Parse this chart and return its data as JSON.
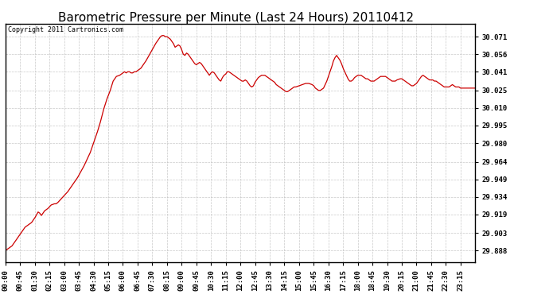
{
  "title": "Barometric Pressure per Minute (Last 24 Hours) 20110412",
  "copyright": "Copyright 2011 Cartronics.com",
  "line_color": "#cc0000",
  "background_color": "#ffffff",
  "plot_bg_color": "#ffffff",
  "grid_color": "#bbbbbb",
  "yticks": [
    29.888,
    29.903,
    29.919,
    29.934,
    29.949,
    29.964,
    29.98,
    29.995,
    30.01,
    30.025,
    30.041,
    30.056,
    30.071
  ],
  "ylim": [
    29.878,
    30.082
  ],
  "xtick_labels": [
    "00:00",
    "00:45",
    "01:30",
    "02:15",
    "03:00",
    "03:45",
    "04:30",
    "05:15",
    "06:00",
    "06:45",
    "07:30",
    "08:15",
    "09:00",
    "09:45",
    "10:30",
    "11:15",
    "12:00",
    "12:45",
    "13:30",
    "14:15",
    "15:00",
    "15:45",
    "16:30",
    "17:15",
    "18:00",
    "18:45",
    "19:30",
    "20:15",
    "21:00",
    "21:45",
    "22:30",
    "23:15"
  ],
  "title_fontsize": 11,
  "axis_fontsize": 6.5,
  "copyright_fontsize": 6,
  "keypoints": [
    [
      0,
      29.888
    ],
    [
      20,
      29.892
    ],
    [
      40,
      29.9
    ],
    [
      60,
      29.908
    ],
    [
      80,
      29.912
    ],
    [
      90,
      29.916
    ],
    [
      100,
      29.921
    ],
    [
      105,
      29.92
    ],
    [
      110,
      29.918
    ],
    [
      115,
      29.92
    ],
    [
      120,
      29.922
    ],
    [
      130,
      29.924
    ],
    [
      140,
      29.927
    ],
    [
      150,
      29.928
    ],
    [
      155,
      29.928
    ],
    [
      160,
      29.929
    ],
    [
      170,
      29.932
    ],
    [
      180,
      29.935
    ],
    [
      190,
      29.938
    ],
    [
      200,
      29.942
    ],
    [
      210,
      29.946
    ],
    [
      220,
      29.95
    ],
    [
      230,
      29.955
    ],
    [
      240,
      29.96
    ],
    [
      250,
      29.966
    ],
    [
      260,
      29.972
    ],
    [
      270,
      29.98
    ],
    [
      280,
      29.988
    ],
    [
      290,
      29.997
    ],
    [
      300,
      30.008
    ],
    [
      310,
      30.017
    ],
    [
      320,
      30.024
    ],
    [
      330,
      30.033
    ],
    [
      340,
      30.037
    ],
    [
      350,
      30.038
    ],
    [
      355,
      30.039
    ],
    [
      360,
      30.04
    ],
    [
      365,
      30.041
    ],
    [
      370,
      30.04
    ],
    [
      375,
      30.041
    ],
    [
      380,
      30.041
    ],
    [
      385,
      30.04
    ],
    [
      390,
      30.04
    ],
    [
      395,
      30.041
    ],
    [
      400,
      30.041
    ],
    [
      405,
      30.042
    ],
    [
      410,
      30.043
    ],
    [
      415,
      30.044
    ],
    [
      420,
      30.046
    ],
    [
      430,
      30.05
    ],
    [
      440,
      30.055
    ],
    [
      450,
      30.06
    ],
    [
      460,
      30.065
    ],
    [
      470,
      30.069
    ],
    [
      475,
      30.071
    ],
    [
      480,
      30.072
    ],
    [
      485,
      30.072
    ],
    [
      490,
      30.071
    ],
    [
      495,
      30.071
    ],
    [
      500,
      30.07
    ],
    [
      505,
      30.069
    ],
    [
      510,
      30.067
    ],
    [
      515,
      30.065
    ],
    [
      520,
      30.062
    ],
    [
      525,
      30.063
    ],
    [
      530,
      30.064
    ],
    [
      535,
      30.063
    ],
    [
      540,
      30.06
    ],
    [
      545,
      30.056
    ],
    [
      550,
      30.055
    ],
    [
      555,
      30.057
    ],
    [
      560,
      30.056
    ],
    [
      565,
      30.054
    ],
    [
      570,
      30.052
    ],
    [
      575,
      30.05
    ],
    [
      580,
      30.048
    ],
    [
      585,
      30.047
    ],
    [
      590,
      30.048
    ],
    [
      595,
      30.049
    ],
    [
      600,
      30.048
    ],
    [
      605,
      30.046
    ],
    [
      610,
      30.044
    ],
    [
      615,
      30.042
    ],
    [
      620,
      30.04
    ],
    [
      625,
      30.038
    ],
    [
      630,
      30.04
    ],
    [
      635,
      30.041
    ],
    [
      640,
      30.04
    ],
    [
      645,
      30.038
    ],
    [
      650,
      30.036
    ],
    [
      655,
      30.034
    ],
    [
      660,
      30.033
    ],
    [
      665,
      30.036
    ],
    [
      670,
      30.038
    ],
    [
      675,
      30.039
    ],
    [
      680,
      30.041
    ],
    [
      685,
      30.041
    ],
    [
      690,
      30.04
    ],
    [
      695,
      30.039
    ],
    [
      700,
      30.038
    ],
    [
      705,
      30.037
    ],
    [
      710,
      30.036
    ],
    [
      715,
      30.035
    ],
    [
      720,
      30.034
    ],
    [
      725,
      30.033
    ],
    [
      730,
      30.033
    ],
    [
      735,
      30.034
    ],
    [
      740,
      30.033
    ],
    [
      745,
      30.031
    ],
    [
      750,
      30.029
    ],
    [
      755,
      30.028
    ],
    [
      760,
      30.029
    ],
    [
      765,
      30.032
    ],
    [
      770,
      30.034
    ],
    [
      775,
      30.036
    ],
    [
      780,
      30.037
    ],
    [
      785,
      30.038
    ],
    [
      790,
      30.038
    ],
    [
      795,
      30.038
    ],
    [
      800,
      30.037
    ],
    [
      805,
      30.036
    ],
    [
      810,
      30.035
    ],
    [
      815,
      30.034
    ],
    [
      820,
      30.033
    ],
    [
      825,
      30.032
    ],
    [
      830,
      30.03
    ],
    [
      840,
      30.028
    ],
    [
      850,
      30.026
    ],
    [
      855,
      30.025
    ],
    [
      860,
      30.024
    ],
    [
      865,
      30.024
    ],
    [
      870,
      30.025
    ],
    [
      875,
      30.026
    ],
    [
      880,
      30.027
    ],
    [
      885,
      30.028
    ],
    [
      890,
      30.028
    ],
    [
      900,
      30.029
    ],
    [
      910,
      30.03
    ],
    [
      920,
      30.031
    ],
    [
      930,
      30.031
    ],
    [
      940,
      30.03
    ],
    [
      945,
      30.029
    ],
    [
      950,
      30.027
    ],
    [
      955,
      30.026
    ],
    [
      960,
      30.025
    ],
    [
      965,
      30.025
    ],
    [
      970,
      30.026
    ],
    [
      975,
      30.027
    ],
    [
      985,
      30.033
    ],
    [
      995,
      30.041
    ],
    [
      1000,
      30.045
    ],
    [
      1005,
      30.05
    ],
    [
      1010,
      30.053
    ],
    [
      1015,
      30.055
    ],
    [
      1020,
      30.053
    ],
    [
      1025,
      30.051
    ],
    [
      1030,
      30.048
    ],
    [
      1035,
      30.044
    ],
    [
      1040,
      30.041
    ],
    [
      1045,
      30.038
    ],
    [
      1050,
      30.035
    ],
    [
      1055,
      30.033
    ],
    [
      1060,
      30.033
    ],
    [
      1065,
      30.034
    ],
    [
      1070,
      30.036
    ],
    [
      1075,
      30.037
    ],
    [
      1080,
      30.038
    ],
    [
      1085,
      30.038
    ],
    [
      1090,
      30.038
    ],
    [
      1095,
      30.037
    ],
    [
      1100,
      30.036
    ],
    [
      1105,
      30.035
    ],
    [
      1110,
      30.035
    ],
    [
      1115,
      30.034
    ],
    [
      1120,
      30.033
    ],
    [
      1125,
      30.033
    ],
    [
      1130,
      30.033
    ],
    [
      1135,
      30.034
    ],
    [
      1140,
      30.035
    ],
    [
      1145,
      30.036
    ],
    [
      1150,
      30.037
    ],
    [
      1155,
      30.037
    ],
    [
      1160,
      30.037
    ],
    [
      1165,
      30.037
    ],
    [
      1170,
      30.036
    ],
    [
      1175,
      30.035
    ],
    [
      1180,
      30.034
    ],
    [
      1185,
      30.033
    ],
    [
      1190,
      30.033
    ],
    [
      1195,
      30.033
    ],
    [
      1200,
      30.034
    ],
    [
      1210,
      30.035
    ],
    [
      1215,
      30.035
    ],
    [
      1220,
      30.034
    ],
    [
      1225,
      30.033
    ],
    [
      1230,
      30.032
    ],
    [
      1235,
      30.031
    ],
    [
      1240,
      30.03
    ],
    [
      1245,
      30.029
    ],
    [
      1250,
      30.029
    ],
    [
      1255,
      30.03
    ],
    [
      1260,
      30.031
    ],
    [
      1265,
      30.033
    ],
    [
      1270,
      30.035
    ],
    [
      1275,
      30.037
    ],
    [
      1280,
      30.038
    ],
    [
      1285,
      30.037
    ],
    [
      1290,
      30.036
    ],
    [
      1295,
      30.035
    ],
    [
      1300,
      30.034
    ],
    [
      1305,
      30.034
    ],
    [
      1310,
      30.034
    ],
    [
      1315,
      30.033
    ],
    [
      1320,
      30.033
    ],
    [
      1325,
      30.032
    ],
    [
      1330,
      30.031
    ],
    [
      1335,
      30.03
    ],
    [
      1340,
      30.029
    ],
    [
      1345,
      30.028
    ],
    [
      1350,
      30.028
    ],
    [
      1355,
      30.028
    ],
    [
      1360,
      30.028
    ],
    [
      1365,
      30.029
    ],
    [
      1370,
      30.03
    ],
    [
      1375,
      30.029
    ],
    [
      1380,
      30.028
    ],
    [
      1385,
      30.028
    ],
    [
      1390,
      30.028
    ],
    [
      1395,
      30.027
    ],
    [
      1400,
      30.027
    ],
    [
      1405,
      30.027
    ],
    [
      1410,
      30.027
    ],
    [
      1415,
      30.027
    ],
    [
      1420,
      30.027
    ],
    [
      1425,
      30.027
    ],
    [
      1430,
      30.027
    ],
    [
      1435,
      30.027
    ],
    [
      1439,
      30.027
    ]
  ]
}
